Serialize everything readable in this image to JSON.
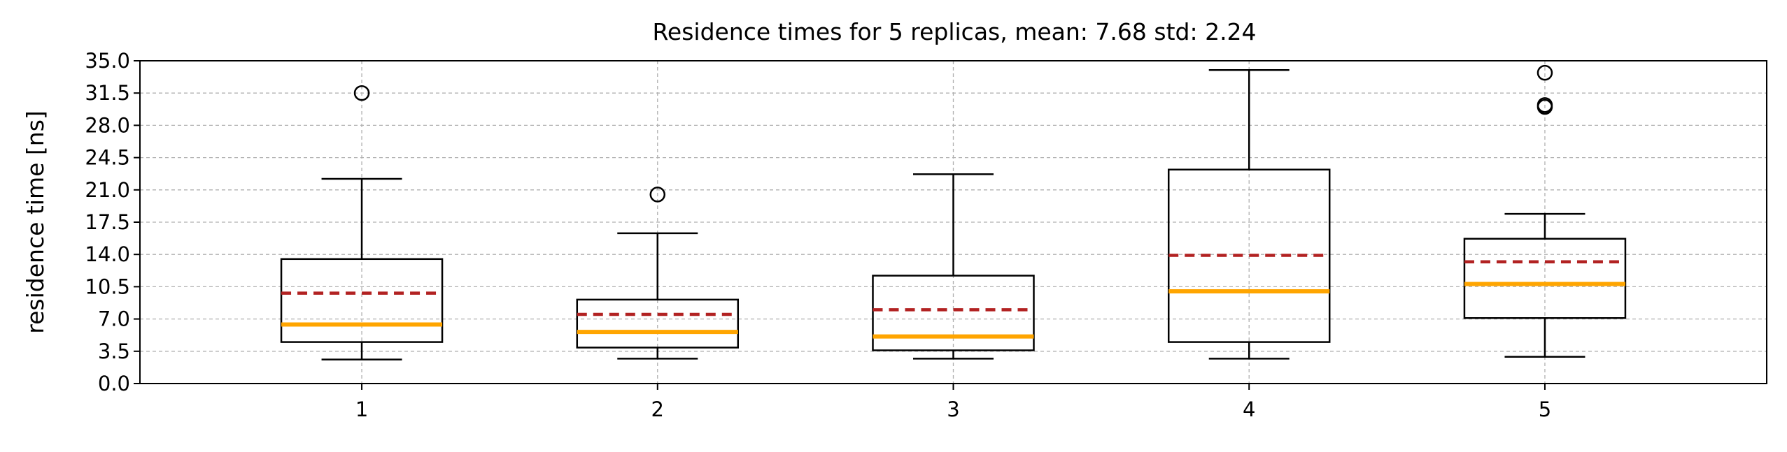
{
  "chart_data": {
    "type": "box",
    "title": "Residence times for 5 replicas, mean: 7.68  std: 2.24",
    "xlabel": "",
    "ylabel": "residence time [ns]",
    "ylim": [
      0,
      35
    ],
    "yticks": [
      "0.0",
      "3.5",
      "7.0",
      "10.5",
      "14.0",
      "17.5",
      "21.0",
      "24.5",
      "28.0",
      "31.5",
      "35.0"
    ],
    "categories": [
      "1",
      "2",
      "3",
      "4",
      "5"
    ],
    "grid": true,
    "colors": {
      "median": "#ffa500",
      "mean": "#b22222",
      "box": "#000000",
      "grid": "#b0b0b0"
    },
    "boxes": [
      {
        "category": "1",
        "whisker_low": 2.6,
        "q1": 4.5,
        "median": 6.4,
        "mean": 9.8,
        "q3": 13.5,
        "whisker_high": 22.2,
        "outliers": [
          31.5
        ]
      },
      {
        "category": "2",
        "whisker_low": 2.7,
        "q1": 3.9,
        "median": 5.6,
        "mean": 7.5,
        "q3": 9.1,
        "whisker_high": 16.3,
        "outliers": [
          20.5
        ]
      },
      {
        "category": "3",
        "whisker_low": 2.7,
        "q1": 3.6,
        "median": 5.1,
        "mean": 8.0,
        "q3": 11.7,
        "whisker_high": 22.7,
        "outliers": []
      },
      {
        "category": "4",
        "whisker_low": 2.7,
        "q1": 4.5,
        "median": 10.0,
        "mean": 13.9,
        "q3": 23.2,
        "whisker_high": 34.0,
        "outliers": []
      },
      {
        "category": "5",
        "whisker_low": 2.9,
        "q1": 7.1,
        "median": 10.8,
        "mean": 13.2,
        "q3": 15.7,
        "whisker_high": 18.4,
        "outliers": [
          30.0,
          30.2,
          33.7
        ]
      }
    ]
  }
}
